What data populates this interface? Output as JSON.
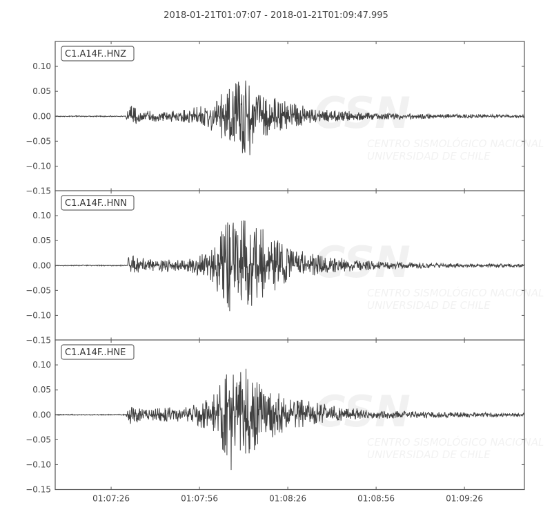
{
  "chart_data": {
    "type": "line",
    "title": "2018-01-21T01:07:07  -  2018-01-21T01:09:47.995",
    "x_start": "01:07:07",
    "x_end": "01:09:47.995",
    "x_ticks": [
      "01:07:26",
      "01:07:56",
      "01:08:26",
      "01:08:56",
      "01:09:26"
    ],
    "y_ticks": [
      "0.10",
      "0.05",
      "0.00",
      "−0.05",
      "−0.10",
      "−0.15"
    ],
    "ylim": [
      -0.15,
      0.15
    ],
    "grid": false,
    "line_color": "#404040",
    "watermark": {
      "logo": "CSN",
      "line1": "CENTRO SISMOLÓGICO NACIONAL",
      "line2": "UNIVERSIDAD DE CHILE"
    },
    "traces": [
      {
        "name": "C1.A14F..HNZ",
        "envelope": [
          [
            "01:07:07",
            0.001,
            0.001
          ],
          [
            "01:07:31",
            0.001,
            0.001
          ],
          [
            "01:07:32",
            0.027,
            0.022
          ],
          [
            "01:07:36",
            0.015,
            0.012
          ],
          [
            "01:07:45",
            0.01,
            0.01
          ],
          [
            "01:07:52",
            0.014,
            0.014
          ],
          [
            "01:08:00",
            0.03,
            0.03
          ],
          [
            "01:08:06",
            0.06,
            0.06
          ],
          [
            "01:08:12",
            0.08,
            0.095
          ],
          [
            "01:08:16",
            0.05,
            0.045
          ],
          [
            "01:08:26",
            0.03,
            0.025
          ],
          [
            "01:08:36",
            0.015,
            0.012
          ],
          [
            "01:08:56",
            0.007,
            0.007
          ],
          [
            "01:09:26",
            0.004,
            0.004
          ],
          [
            "01:09:47",
            0.003,
            0.003
          ]
        ]
      },
      {
        "name": "C1.A14F..HNN",
        "envelope": [
          [
            "01:07:07",
            0.001,
            0.001
          ],
          [
            "01:07:31",
            0.001,
            0.001
          ],
          [
            "01:07:32",
            0.022,
            0.02
          ],
          [
            "01:07:40",
            0.012,
            0.012
          ],
          [
            "01:07:52",
            0.012,
            0.012
          ],
          [
            "01:08:00",
            0.03,
            0.03
          ],
          [
            "01:08:05",
            0.09,
            0.09
          ],
          [
            "01:08:10",
            0.1,
            0.108
          ],
          [
            "01:08:16",
            0.08,
            0.08
          ],
          [
            "01:08:26",
            0.035,
            0.03
          ],
          [
            "01:08:40",
            0.018,
            0.015
          ],
          [
            "01:08:56",
            0.008,
            0.008
          ],
          [
            "01:09:26",
            0.004,
            0.004
          ],
          [
            "01:09:47",
            0.003,
            0.003
          ]
        ]
      },
      {
        "name": "C1.A14F..HNE",
        "envelope": [
          [
            "01:07:07",
            0.001,
            0.001
          ],
          [
            "01:07:31",
            0.001,
            0.001
          ],
          [
            "01:07:32",
            0.02,
            0.02
          ],
          [
            "01:07:40",
            0.014,
            0.013
          ],
          [
            "01:07:52",
            0.016,
            0.015
          ],
          [
            "01:08:00",
            0.035,
            0.035
          ],
          [
            "01:08:06",
            0.09,
            0.115
          ],
          [
            "01:08:12",
            0.1,
            0.1
          ],
          [
            "01:08:18",
            0.06,
            0.06
          ],
          [
            "01:08:26",
            0.035,
            0.03
          ],
          [
            "01:08:40",
            0.02,
            0.015
          ],
          [
            "01:08:56",
            0.008,
            0.008
          ],
          [
            "01:09:26",
            0.005,
            0.005
          ],
          [
            "01:09:47",
            0.004,
            0.004
          ]
        ]
      }
    ]
  }
}
